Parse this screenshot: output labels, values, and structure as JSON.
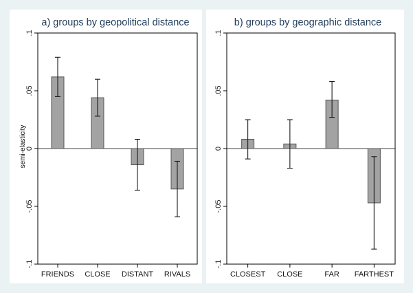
{
  "chart_data": [
    {
      "type": "bar",
      "title": "a) groups by geopolitical distance",
      "ylabel": "semi-elasticity",
      "xlabel": "",
      "ylim": [
        -0.1,
        0.1
      ],
      "yticks": [
        {
          "value": 0.1,
          "label": ".1"
        },
        {
          "value": 0.05,
          "label": ".05"
        },
        {
          "value": 0,
          "label": "0"
        },
        {
          "value": -0.05,
          "label": "-.05"
        },
        {
          "value": -0.1,
          "label": "-.1"
        }
      ],
      "categories": [
        "FRIENDS",
        "CLOSE",
        "DISTANT",
        "RIVALS"
      ],
      "values": [
        0.062,
        0.044,
        -0.014,
        -0.035
      ],
      "ci_low": [
        0.045,
        0.028,
        -0.036,
        -0.059
      ],
      "ci_high": [
        0.079,
        0.06,
        0.008,
        -0.011
      ],
      "grid": false,
      "bar_color": "#a3a3a3"
    },
    {
      "type": "bar",
      "title": "b) groups by geographic distance",
      "ylabel": "",
      "xlabel": "",
      "ylim": [
        -0.1,
        0.1
      ],
      "yticks": [
        {
          "value": 0.1,
          "label": ".1"
        },
        {
          "value": 0.05,
          "label": ".05"
        },
        {
          "value": 0,
          "label": "0"
        },
        {
          "value": -0.05,
          "label": "-.05"
        },
        {
          "value": -0.1,
          "label": "-.1"
        }
      ],
      "categories": [
        "CLOSEST",
        "CLOSE",
        "FAR",
        "FARTHEST"
      ],
      "values": [
        0.008,
        0.004,
        0.042,
        -0.047
      ],
      "ci_low": [
        -0.009,
        -0.017,
        0.027,
        -0.087
      ],
      "ci_high": [
        0.025,
        0.025,
        0.058,
        -0.007
      ],
      "grid": false,
      "bar_color": "#a3a3a3"
    }
  ]
}
